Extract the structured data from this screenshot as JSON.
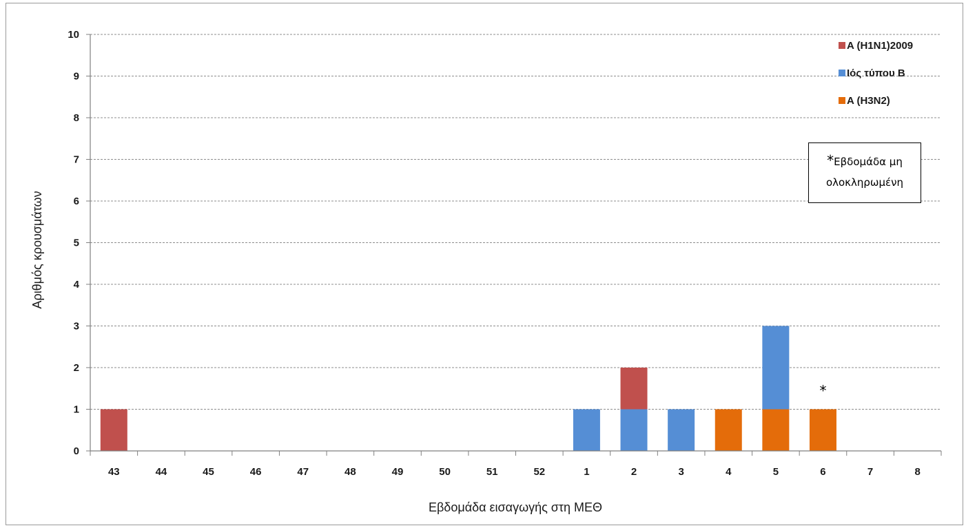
{
  "chart_data": {
    "type": "bar",
    "stacked": true,
    "title": "",
    "xlabel": "Εβδομάδα εισαγωγής στη ΜΕΘ",
    "ylabel": "Αριθμός κρουσμάτων",
    "ylim": [
      0,
      10
    ],
    "yticks": [
      "0",
      "1",
      "2",
      "3",
      "4",
      "5",
      "6",
      "7",
      "8",
      "9",
      "10"
    ],
    "categories": [
      "43",
      "44",
      "45",
      "46",
      "47",
      "48",
      "49",
      "50",
      "51",
      "52",
      "1",
      "2",
      "3",
      "4",
      "5",
      "6",
      "7",
      "8"
    ],
    "series": [
      {
        "name": "A (H3N2)",
        "color": "#e46c0a",
        "values": [
          0,
          0,
          0,
          0,
          0,
          0,
          0,
          0,
          0,
          0,
          0,
          0,
          0,
          1,
          1,
          1,
          0,
          0
        ]
      },
      {
        "name": "Ιός τύπου B",
        "color": "#558ed5",
        "values": [
          0,
          0,
          0,
          0,
          0,
          0,
          0,
          0,
          0,
          0,
          1,
          1,
          1,
          0,
          2,
          0,
          0,
          0
        ]
      },
      {
        "name": "A (H1N1)2009",
        "color": "#c0504d",
        "values": [
          1,
          0,
          0,
          0,
          0,
          0,
          0,
          0,
          0,
          0,
          0,
          1,
          0,
          0,
          0,
          0,
          0,
          0
        ]
      }
    ],
    "legend_order": [
      "A (H1N1)2009",
      "Ιός τύπου B",
      "A (H3N2)"
    ],
    "legend_position": "top-right",
    "grid": "dashed horizontal",
    "annotations": [
      {
        "category": "6",
        "text": "*"
      }
    ],
    "note": {
      "star": "*",
      "line1": "Εβδομάδα μη",
      "line2": "ολοκληρωμένη"
    }
  }
}
